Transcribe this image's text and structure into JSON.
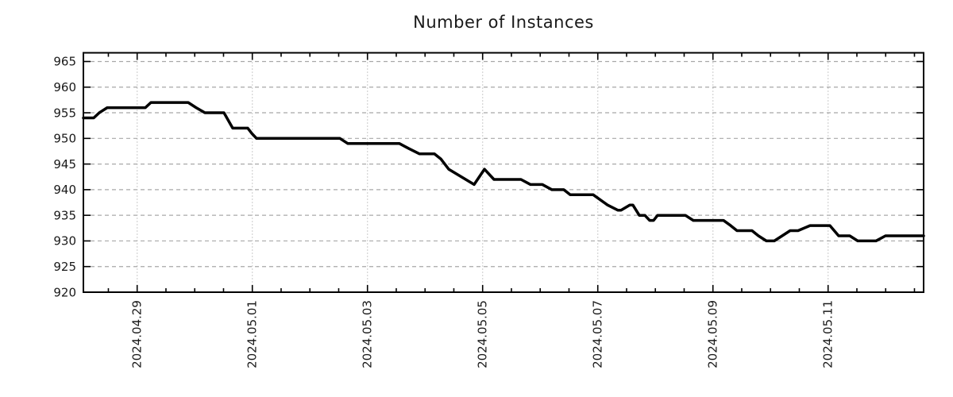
{
  "chart_data": {
    "type": "line",
    "title": "Number of Instances",
    "legend": "none",
    "x_axis": {
      "origin_date": "2024-04-28",
      "domain_days": [
        0.066,
        14.659
      ],
      "tick_positions_days": [
        1,
        3,
        5,
        7,
        9,
        11,
        13
      ],
      "tick_labels": [
        "2024.04.29",
        "2024.05.01",
        "2024.05.03",
        "2024.05.05",
        "2024.05.07",
        "2024.05.09",
        "2024.05.11"
      ],
      "minor_tick_step_days": 0.5
    },
    "y_axis": {
      "domain": [
        920,
        966.7
      ],
      "tick_values": [
        920,
        925,
        930,
        935,
        940,
        945,
        950,
        955,
        960,
        965
      ],
      "tick_labels": [
        "920",
        "925",
        "930",
        "935",
        "940",
        "945",
        "950",
        "955",
        "960",
        "965"
      ]
    },
    "grid": {
      "horizontal": "dashed",
      "vertical": "dotted",
      "color": "#a8a8a8"
    },
    "series": [
      {
        "name": "instances",
        "color": "#000000",
        "points_days_value": [
          [
            0.066,
            954
          ],
          [
            0.245,
            954
          ],
          [
            0.342,
            955
          ],
          [
            0.48,
            956
          ],
          [
            1.142,
            956
          ],
          [
            1.239,
            957
          ],
          [
            1.887,
            957
          ],
          [
            2.025,
            956
          ],
          [
            2.177,
            955
          ],
          [
            2.508,
            955
          ],
          [
            2.659,
            952
          ],
          [
            2.921,
            952
          ],
          [
            2.99,
            951
          ],
          [
            3.073,
            950
          ],
          [
            4.521,
            950
          ],
          [
            4.659,
            949
          ],
          [
            5.556,
            949
          ],
          [
            5.721,
            948
          ],
          [
            5.9,
            947
          ],
          [
            6.162,
            947
          ],
          [
            6.273,
            946
          ],
          [
            6.411,
            944
          ],
          [
            6.852,
            941
          ],
          [
            7.031,
            944
          ],
          [
            7.197,
            942
          ],
          [
            7.666,
            942
          ],
          [
            7.831,
            941
          ],
          [
            8.038,
            941
          ],
          [
            8.204,
            940
          ],
          [
            8.41,
            940
          ],
          [
            8.521,
            939
          ],
          [
            8.921,
            939
          ],
          [
            9.169,
            937
          ],
          [
            9.348,
            936
          ],
          [
            9.404,
            936
          ],
          [
            9.555,
            937
          ],
          [
            9.61,
            937
          ],
          [
            9.721,
            935
          ],
          [
            9.817,
            935
          ],
          [
            9.9,
            934
          ],
          [
            9.969,
            934
          ],
          [
            10.038,
            935
          ],
          [
            10.521,
            935
          ],
          [
            10.659,
            934
          ],
          [
            11.183,
            934
          ],
          [
            11.307,
            933
          ],
          [
            11.417,
            932
          ],
          [
            11.679,
            932
          ],
          [
            11.79,
            931
          ],
          [
            11.928,
            930
          ],
          [
            12.066,
            930
          ],
          [
            12.203,
            931
          ],
          [
            12.341,
            932
          ],
          [
            12.479,
            932
          ],
          [
            12.686,
            933
          ],
          [
            13.031,
            933
          ],
          [
            13.183,
            931
          ],
          [
            13.376,
            931
          ],
          [
            13.514,
            930
          ],
          [
            13.831,
            930
          ],
          [
            13.997,
            931
          ],
          [
            14.659,
            931
          ]
        ]
      }
    ],
    "style": {
      "background": "#ffffff",
      "border_color": "#000000",
      "text_color": "#1a1a1a",
      "line_width": 3.5
    }
  }
}
